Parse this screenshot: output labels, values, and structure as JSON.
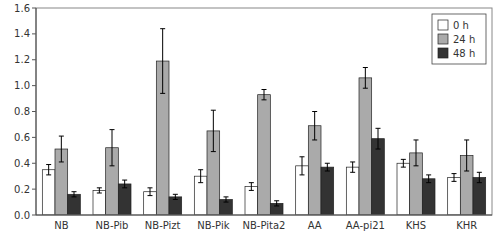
{
  "chart_data": {
    "type": "bar",
    "categories": [
      "NB",
      "NB-Pib",
      "NB-Pizt",
      "NB-Pik",
      "NB-Pita2",
      "AA",
      "AA-pi21",
      "KHS",
      "KHR"
    ],
    "series": [
      {
        "name": "0 h",
        "color": "#ffffff",
        "values": [
          0.35,
          0.19,
          0.18,
          0.3,
          0.22,
          0.38,
          0.37,
          0.4,
          0.29
        ],
        "errors": [
          0.04,
          0.02,
          0.03,
          0.05,
          0.03,
          0.07,
          0.04,
          0.03,
          0.03
        ]
      },
      {
        "name": "24 h",
        "color": "#aaaaaa",
        "values": [
          0.51,
          0.52,
          1.19,
          0.65,
          0.93,
          0.69,
          1.06,
          0.48,
          0.46
        ],
        "errors": [
          0.1,
          0.14,
          0.25,
          0.16,
          0.04,
          0.11,
          0.08,
          0.1,
          0.12
        ]
      },
      {
        "name": "48 h",
        "color": "#333333",
        "values": [
          0.16,
          0.24,
          0.14,
          0.12,
          0.09,
          0.37,
          0.59,
          0.28,
          0.29
        ],
        "errors": [
          0.02,
          0.03,
          0.02,
          0.02,
          0.02,
          0.03,
          0.08,
          0.03,
          0.04
        ]
      }
    ],
    "ylim": [
      0,
      1.6
    ],
    "yticks": [
      {
        "value": 0,
        "label": "0.0"
      },
      0.2,
      0.4,
      0.6,
      0.8,
      {
        "value": 1,
        "label": "1.0"
      },
      1.2,
      1.4,
      1.6
    ],
    "legend": "upper right",
    "grid": false
  }
}
